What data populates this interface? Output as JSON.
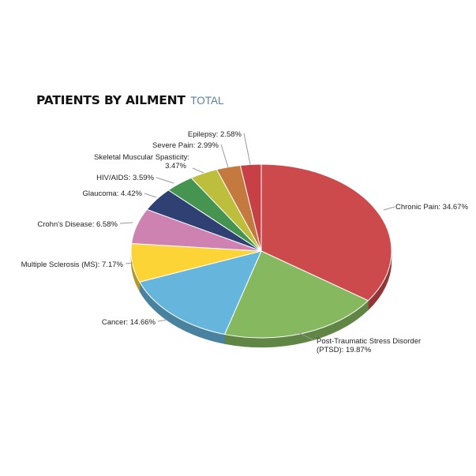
{
  "chart_data": {
    "type": "pie",
    "title": "PATIENTS BY AILMENT",
    "subtitle": "TOTAL",
    "slices": [
      {
        "label": "Chronic Pain: 34.67%",
        "name": "Chronic Pain",
        "value": 34.67,
        "color": "#cc4a4b"
      },
      {
        "label": "Post-Traumatic Stress Disorder (PTSD): 19.87%",
        "name": "Post-Traumatic Stress Disorder (PTSD)",
        "value": 19.87,
        "color": "#86b95f"
      },
      {
        "label": "Cancer: 14.66%",
        "name": "Cancer",
        "value": 14.66,
        "color": "#65b5dc"
      },
      {
        "label": "Multiple Sclerosis (MS): 7.17%",
        "name": "Multiple Sclerosis (MS)",
        "value": 7.17,
        "color": "#fdd436"
      },
      {
        "label": "Crohn's Disease: 6.58%",
        "name": "Crohn's Disease",
        "value": 6.58,
        "color": "#cd82b1"
      },
      {
        "label": "Glaucoma: 4.42%",
        "name": "Glaucoma",
        "value": 4.42,
        "color": "#2e4172"
      },
      {
        "label": "HIV/AIDS: 3.59%",
        "name": "HIV/AIDS",
        "value": 3.59,
        "color": "#45944f"
      },
      {
        "label": "Skeletal Muscular Spasticity: 3.47%",
        "name": "Skeletal Muscular Spasticity",
        "value": 3.47,
        "color": "#bcbe3c"
      },
      {
        "label": "Severe Pain: 2.99%",
        "name": "Severe Pain",
        "value": 2.99,
        "color": "#c47a3f"
      },
      {
        "label": "Epilepsy: 2.58%",
        "name": "Epilepsy",
        "value": 2.58,
        "color": "#c74045"
      }
    ]
  }
}
